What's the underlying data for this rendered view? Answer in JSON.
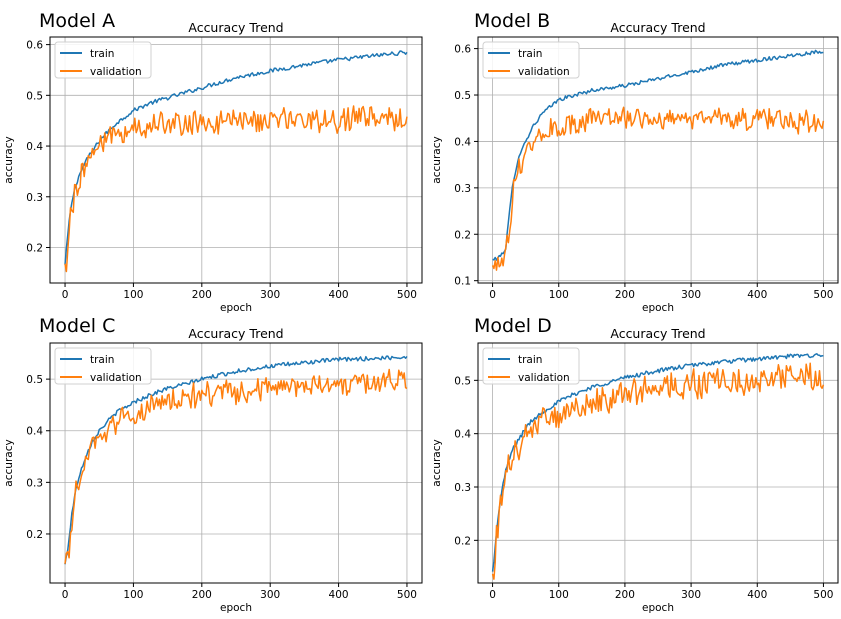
{
  "chart_data": [
    {
      "panel_label": "Model A",
      "type": "line",
      "title": "Accuracy Trend",
      "xlabel": "epoch",
      "ylabel": "accuracy",
      "xlim": [
        -22,
        522
      ],
      "ylim": [
        0.13,
        0.615
      ],
      "xticks": [
        0,
        100,
        200,
        300,
        400,
        500
      ],
      "yticks": [
        0.2,
        0.3,
        0.4,
        0.5,
        0.6
      ],
      "grid": true,
      "legend_position": "top-left",
      "series": [
        {
          "name": "train",
          "color": "#1f77b4",
          "x": [
            0,
            5,
            10,
            15,
            20,
            25,
            30,
            40,
            50,
            60,
            75,
            100,
            125,
            150,
            175,
            200,
            250,
            300,
            350,
            400,
            450,
            500
          ],
          "y": [
            0.165,
            0.24,
            0.29,
            0.32,
            0.34,
            0.355,
            0.37,
            0.39,
            0.41,
            0.425,
            0.445,
            0.47,
            0.485,
            0.495,
            0.505,
            0.515,
            0.535,
            0.548,
            0.56,
            0.57,
            0.578,
            0.585
          ]
        },
        {
          "name": "validation",
          "color": "#ff7f0e",
          "x": [
            0,
            5,
            10,
            15,
            20,
            25,
            30,
            40,
            50,
            60,
            75,
            100,
            125,
            150,
            175,
            200,
            250,
            300,
            350,
            400,
            450,
            500
          ],
          "y": [
            0.15,
            0.23,
            0.28,
            0.31,
            0.33,
            0.35,
            0.365,
            0.385,
            0.4,
            0.41,
            0.425,
            0.435,
            0.44,
            0.442,
            0.445,
            0.445,
            0.448,
            0.45,
            0.452,
            0.453,
            0.452,
            0.455
          ],
          "noise": 0.022
        }
      ]
    },
    {
      "panel_label": "Model B",
      "type": "line",
      "title": "Accuracy Trend",
      "xlabel": "epoch",
      "ylabel": "accuracy",
      "xlim": [
        -22,
        522
      ],
      "ylim": [
        0.095,
        0.625
      ],
      "xticks": [
        0,
        100,
        200,
        300,
        400,
        500
      ],
      "yticks": [
        0.1,
        0.2,
        0.3,
        0.4,
        0.5,
        0.6
      ],
      "grid": true,
      "legend_position": "top-left",
      "series": [
        {
          "name": "train",
          "color": "#1f77b4",
          "x": [
            0,
            10,
            20,
            25,
            30,
            35,
            40,
            50,
            60,
            75,
            100,
            125,
            150,
            175,
            200,
            250,
            300,
            350,
            400,
            450,
            500
          ],
          "y": [
            0.145,
            0.15,
            0.17,
            0.24,
            0.3,
            0.34,
            0.37,
            0.4,
            0.43,
            0.46,
            0.49,
            0.5,
            0.51,
            0.515,
            0.52,
            0.535,
            0.55,
            0.565,
            0.575,
            0.585,
            0.595
          ]
        },
        {
          "name": "validation",
          "color": "#ff7f0e",
          "x": [
            0,
            10,
            20,
            25,
            30,
            35,
            40,
            50,
            60,
            75,
            100,
            125,
            150,
            175,
            200,
            250,
            300,
            350,
            400,
            450,
            500
          ],
          "y": [
            0.13,
            0.14,
            0.16,
            0.22,
            0.28,
            0.32,
            0.35,
            0.375,
            0.395,
            0.415,
            0.43,
            0.44,
            0.445,
            0.448,
            0.45,
            0.452,
            0.452,
            0.45,
            0.448,
            0.445,
            0.44
          ],
          "noise": 0.022
        }
      ]
    },
    {
      "panel_label": "Model C",
      "type": "line",
      "title": "Accuracy Trend",
      "xlabel": "epoch",
      "ylabel": "accuracy",
      "xlim": [
        -22,
        522
      ],
      "ylim": [
        0.105,
        0.57
      ],
      "xticks": [
        0,
        100,
        200,
        300,
        400,
        500
      ],
      "yticks": [
        0.2,
        0.3,
        0.4,
        0.5
      ],
      "grid": true,
      "legend_position": "top-left",
      "series": [
        {
          "name": "train",
          "color": "#1f77b4",
          "x": [
            0,
            5,
            10,
            15,
            20,
            30,
            40,
            50,
            60,
            75,
            100,
            125,
            150,
            175,
            200,
            250,
            300,
            350,
            400,
            450,
            500
          ],
          "y": [
            0.14,
            0.18,
            0.24,
            0.28,
            0.31,
            0.35,
            0.38,
            0.4,
            0.415,
            0.435,
            0.455,
            0.47,
            0.482,
            0.49,
            0.5,
            0.515,
            0.525,
            0.532,
            0.538,
            0.54,
            0.543
          ]
        },
        {
          "name": "validation",
          "color": "#ff7f0e",
          "x": [
            0,
            5,
            10,
            15,
            20,
            30,
            40,
            50,
            60,
            75,
            100,
            125,
            150,
            175,
            200,
            250,
            300,
            350,
            400,
            450,
            500
          ],
          "y": [
            0.13,
            0.16,
            0.22,
            0.27,
            0.3,
            0.34,
            0.37,
            0.385,
            0.4,
            0.415,
            0.43,
            0.445,
            0.455,
            0.462,
            0.468,
            0.475,
            0.482,
            0.488,
            0.49,
            0.492,
            0.495
          ],
          "noise": 0.022
        }
      ]
    },
    {
      "panel_label": "Model D",
      "type": "line",
      "title": "Accuracy Trend",
      "xlabel": "epoch",
      "ylabel": "accuracy",
      "xlim": [
        -22,
        522
      ],
      "ylim": [
        0.12,
        0.57
      ],
      "xticks": [
        0,
        100,
        200,
        300,
        400,
        500
      ],
      "yticks": [
        0.2,
        0.3,
        0.4,
        0.5
      ],
      "grid": true,
      "legend_position": "top-left",
      "series": [
        {
          "name": "train",
          "color": "#1f77b4",
          "x": [
            0,
            5,
            10,
            15,
            20,
            30,
            40,
            50,
            60,
            75,
            100,
            125,
            150,
            175,
            200,
            250,
            300,
            350,
            400,
            450,
            500
          ],
          "y": [
            0.14,
            0.2,
            0.26,
            0.3,
            0.33,
            0.37,
            0.39,
            0.41,
            0.425,
            0.44,
            0.46,
            0.475,
            0.487,
            0.496,
            0.505,
            0.518,
            0.528,
            0.535,
            0.54,
            0.545,
            0.548
          ]
        },
        {
          "name": "validation",
          "color": "#ff7f0e",
          "x": [
            0,
            5,
            10,
            15,
            20,
            30,
            40,
            50,
            60,
            75,
            100,
            125,
            150,
            175,
            200,
            250,
            300,
            350,
            400,
            450,
            500
          ],
          "y": [
            0.14,
            0.19,
            0.25,
            0.29,
            0.32,
            0.355,
            0.375,
            0.39,
            0.405,
            0.42,
            0.437,
            0.45,
            0.46,
            0.468,
            0.475,
            0.485,
            0.492,
            0.497,
            0.5,
            0.502,
            0.505
          ],
          "noise": 0.025
        }
      ]
    }
  ]
}
